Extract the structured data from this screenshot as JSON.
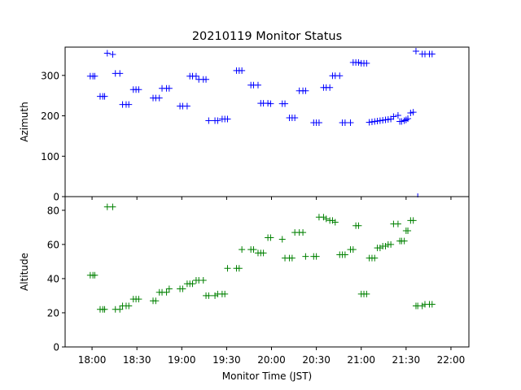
{
  "chart_data": {
    "type": "scatter",
    "title": "20210119 Monitor Status",
    "xlabel": "Monitor Time (JST)",
    "x_unit": "hours (JST)",
    "xlim": [
      17.7,
      22.2
    ],
    "x_ticks": [
      {
        "value": 18.0,
        "label": "18:00"
      },
      {
        "value": 18.5,
        "label": "18:30"
      },
      {
        "value": 19.0,
        "label": "19:00"
      },
      {
        "value": 19.5,
        "label": "19:30"
      },
      {
        "value": 20.0,
        "label": "20:00"
      },
      {
        "value": 20.5,
        "label": "20:30"
      },
      {
        "value": 21.0,
        "label": "21:00"
      },
      {
        "value": 21.5,
        "label": "21:30"
      },
      {
        "value": 22.0,
        "label": "22:00"
      }
    ],
    "panels": [
      {
        "id": "azimuth",
        "ylabel": "Azimuth",
        "ylim": [
          0,
          370
        ],
        "yticks": [
          0,
          100,
          200,
          300
        ],
        "color": "#0000ff",
        "marker": "+",
        "x": [
          17.98,
          18.01,
          18.03,
          18.09,
          18.12,
          18.14,
          18.17,
          18.23,
          18.26,
          18.31,
          18.34,
          18.38,
          18.41,
          18.46,
          18.49,
          18.52,
          18.68,
          18.71,
          18.75,
          18.78,
          18.83,
          18.86,
          18.98,
          19.01,
          19.06,
          19.09,
          19.12,
          19.16,
          19.19,
          19.24,
          19.27,
          19.3,
          19.37,
          19.4,
          19.45,
          19.48,
          19.51,
          19.61,
          19.64,
          19.67,
          19.77,
          19.8,
          19.85,
          19.88,
          19.91,
          19.96,
          19.99,
          20.12,
          20.15,
          20.2,
          20.23,
          20.26,
          20.31,
          20.35,
          20.38,
          20.47,
          20.5,
          20.53,
          20.58,
          20.61,
          20.65,
          20.68,
          20.71,
          20.76,
          20.79,
          20.82,
          20.88,
          20.91,
          20.94,
          20.97,
          21.0,
          21.03,
          21.06,
          21.09,
          21.12,
          21.15,
          21.18,
          21.21,
          21.24,
          21.27,
          21.3,
          21.33,
          21.36,
          21.41,
          21.43,
          21.45,
          21.48,
          21.5,
          21.52,
          21.55,
          21.58,
          21.61,
          21.63,
          21.68,
          21.71,
          21.76,
          21.79
        ],
        "y": [
          298,
          298,
          298,
          248,
          248,
          248,
          355,
          352,
          305,
          305,
          228,
          228,
          228,
          265,
          265,
          265,
          244,
          244,
          244,
          268,
          268,
          268,
          224,
          224,
          224,
          298,
          298,
          298,
          290,
          290,
          290,
          188,
          188,
          188,
          192,
          192,
          192,
          312,
          312,
          312,
          276,
          276,
          276,
          231,
          231,
          231,
          230,
          230,
          230,
          195,
          195,
          195,
          262,
          262,
          262,
          183,
          183,
          183,
          270,
          270,
          270,
          299,
          299,
          299,
          183,
          183,
          183,
          332,
          332,
          332,
          330,
          330,
          330,
          184,
          185,
          186,
          187,
          188,
          189,
          190,
          191,
          192,
          198,
          201,
          186,
          186,
          188,
          190,
          193,
          207,
          209,
          360,
          0,
          353,
          353,
          353,
          353
        ]
      },
      {
        "id": "altitude",
        "ylabel": "Altitude",
        "ylim": [
          0,
          88
        ],
        "yticks": [
          0,
          20,
          40,
          60,
          80
        ],
        "color": "#008000",
        "marker": "+",
        "x": [
          17.98,
          18.01,
          18.03,
          18.09,
          18.12,
          18.14,
          18.17,
          18.23,
          18.26,
          18.31,
          18.34,
          18.38,
          18.41,
          18.46,
          18.49,
          18.52,
          18.68,
          18.71,
          18.75,
          18.78,
          18.83,
          18.86,
          18.98,
          19.01,
          19.06,
          19.09,
          19.12,
          19.16,
          19.19,
          19.24,
          19.27,
          19.3,
          19.37,
          19.4,
          19.45,
          19.48,
          19.51,
          19.61,
          19.64,
          19.67,
          19.77,
          19.8,
          19.85,
          19.88,
          19.91,
          19.96,
          19.99,
          20.12,
          20.15,
          20.2,
          20.23,
          20.26,
          20.31,
          20.35,
          20.38,
          20.47,
          20.5,
          20.53,
          20.58,
          20.61,
          20.65,
          20.68,
          20.71,
          20.76,
          20.79,
          20.82,
          20.88,
          20.91,
          20.94,
          20.97,
          21.0,
          21.03,
          21.06,
          21.09,
          21.12,
          21.15,
          21.18,
          21.21,
          21.24,
          21.27,
          21.3,
          21.33,
          21.36,
          21.41,
          21.43,
          21.45,
          21.48,
          21.5,
          21.52,
          21.55,
          21.58,
          21.61,
          21.63,
          21.68,
          21.71,
          21.76,
          21.79
        ],
        "y": [
          42,
          42,
          42,
          22,
          22,
          22,
          82,
          82,
          22,
          22,
          24,
          24,
          24,
          28,
          28,
          28,
          27,
          27,
          32,
          32,
          32,
          34,
          34,
          34,
          37,
          37,
          37,
          39,
          39,
          39,
          30,
          30,
          30,
          31,
          31,
          31,
          46,
          46,
          46,
          57,
          57,
          57,
          55,
          55,
          55,
          64,
          64,
          63,
          52,
          52,
          52,
          67,
          67,
          67,
          53,
          53,
          53,
          76,
          76,
          75,
          74,
          74,
          73,
          54,
          54,
          54,
          57,
          57,
          71,
          71,
          31,
          31,
          31,
          52,
          52,
          52,
          58,
          58,
          59,
          59,
          60,
          60,
          72,
          72,
          62,
          62,
          62,
          68,
          68,
          74,
          74,
          24,
          24,
          24,
          25,
          25,
          25
        ]
      }
    ]
  }
}
